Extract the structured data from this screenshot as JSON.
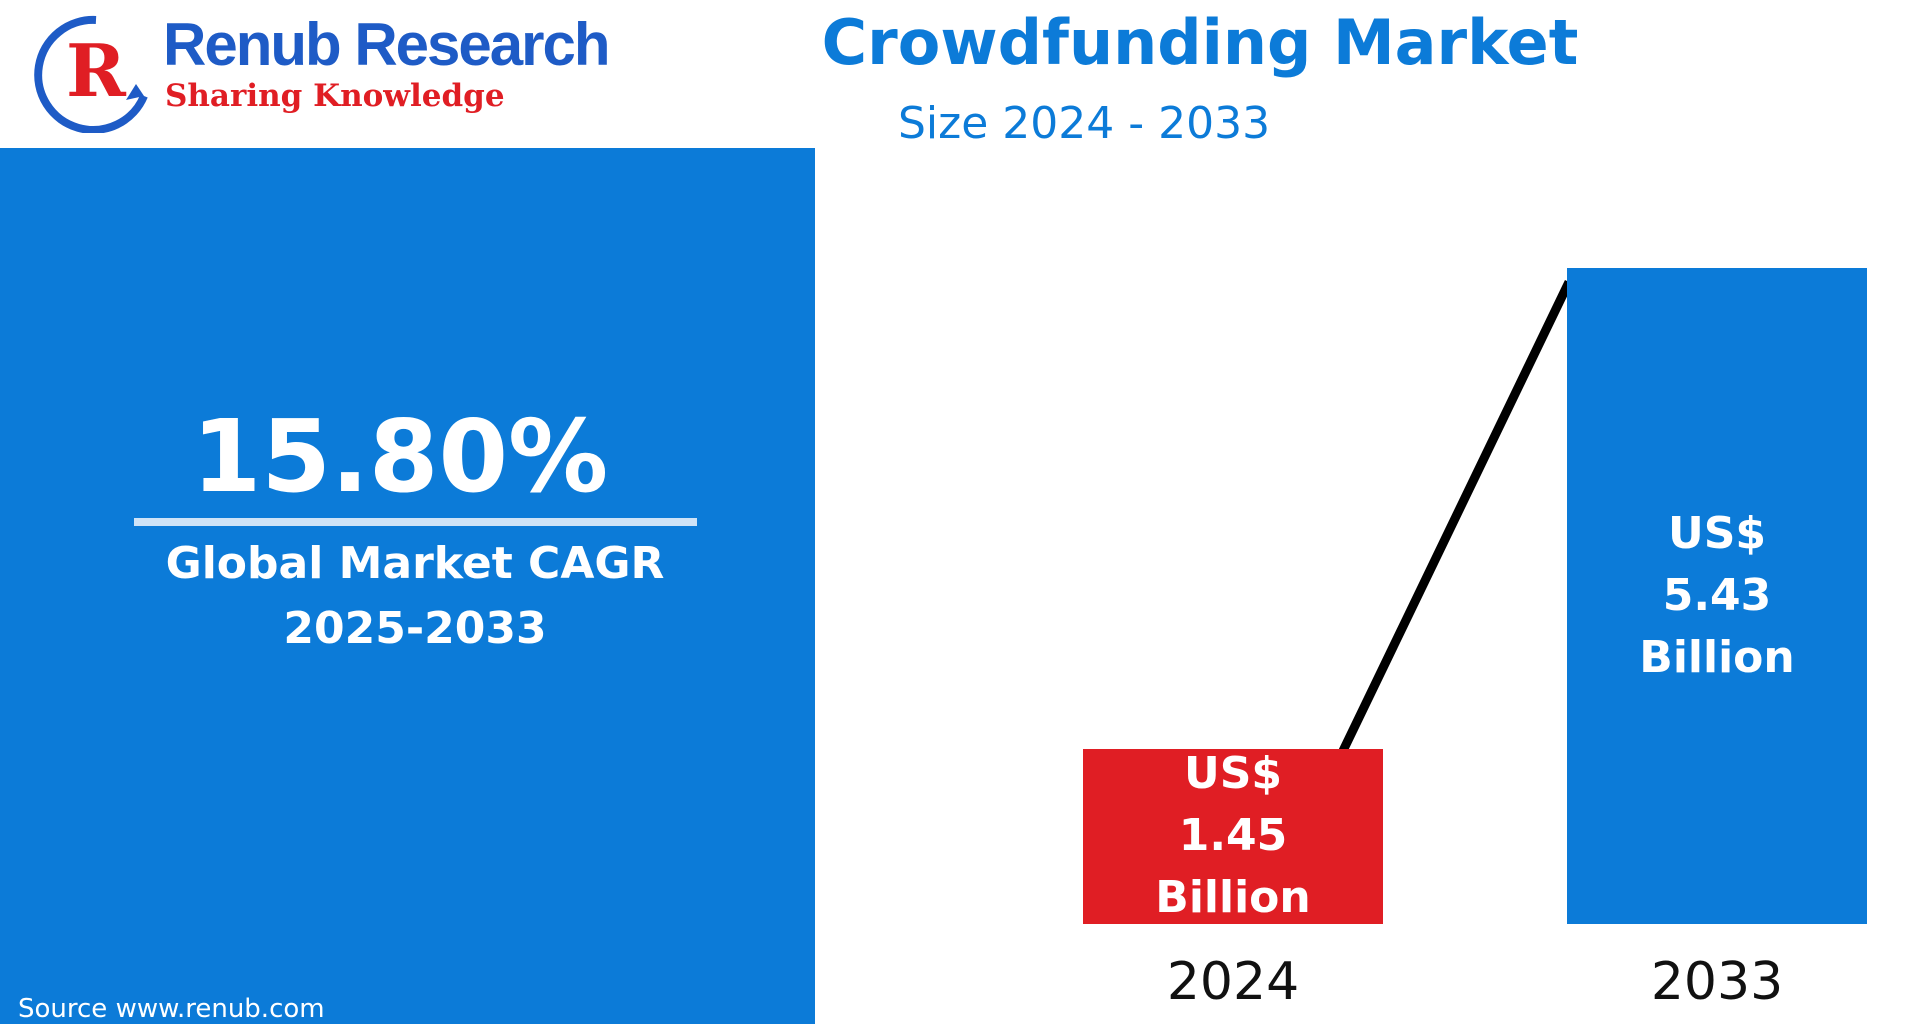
{
  "header": {
    "brand": "Renub Research",
    "tagline": "Sharing Knowledge"
  },
  "cagr_panel": {
    "value": "15.80%",
    "label": "Global Market CAGR",
    "period": "2025-2033",
    "source": "Source  www.renub.com"
  },
  "chart_data": {
    "type": "bar",
    "title": "Crowdfunding Market",
    "subtitle": "Size 2024 - 2033",
    "categories": [
      "2024",
      "2033"
    ],
    "values": [
      1.45,
      5.43
    ],
    "value_labels": [
      "US$ 1.45 Billion",
      "US$ 5.43 Billion"
    ],
    "colors": [
      "#e01e24",
      "#0c7bd8"
    ]
  }
}
